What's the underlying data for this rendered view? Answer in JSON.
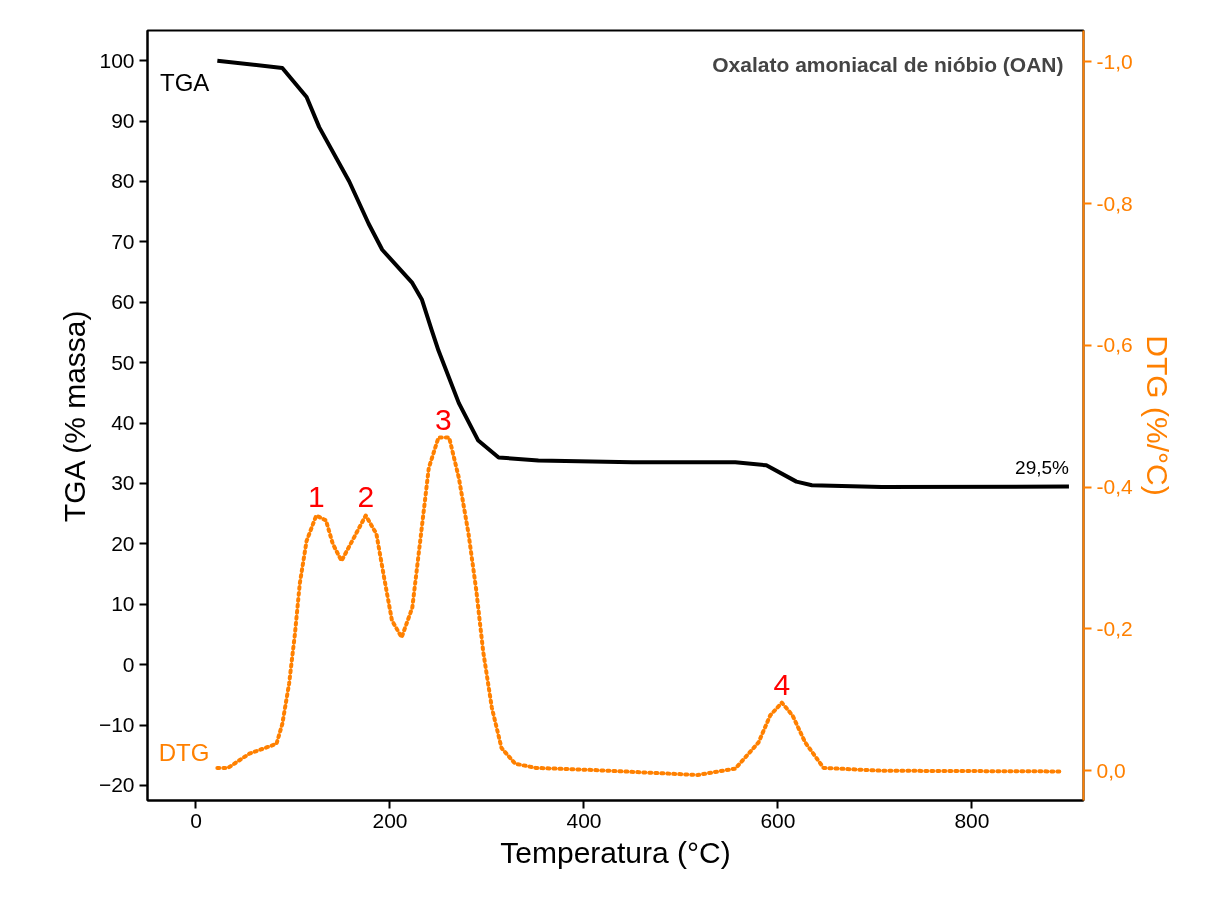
{
  "chart_data": {
    "type": "line",
    "title": "Oxalato amoniacal de nióbio (OAN)",
    "xlabel": "Temperatura (°C)",
    "ylabel": "TGA (% massa)",
    "y2label": "DTG (%/°C)",
    "xlim": [
      -50,
      915
    ],
    "xticks": [
      0,
      200,
      400,
      600,
      800
    ],
    "ylim": [
      -22.5,
      105
    ],
    "yticks": [
      -20,
      -10,
      0,
      10,
      20,
      30,
      40,
      50,
      60,
      70,
      80,
      90,
      100
    ],
    "y2lim": [
      0.042,
      -1.044
    ],
    "y2ticks": [
      {
        "value": 0,
        "label": "0,0"
      },
      {
        "value": -0.2,
        "label": "-0,2"
      },
      {
        "value": -0.4,
        "label": "-0,4"
      },
      {
        "value": -0.6,
        "label": "-0,6"
      },
      {
        "value": -0.8,
        "label": "-0,8"
      },
      {
        "value": -1.0,
        "label": "-1,0"
      }
    ],
    "grid": false,
    "series": [
      {
        "name": "TGA",
        "color": "#000000",
        "line_style": "solid",
        "x": [
          22,
          89,
          114,
          127,
          158,
          178,
          192,
          223,
          233,
          243,
          250,
          271,
          291,
          312,
          353,
          450,
          556,
          588,
          619,
          635,
          707,
          900
        ],
        "values": [
          100,
          98.8,
          94,
          89,
          80,
          73,
          68.7,
          63.2,
          60.4,
          55.4,
          52,
          43.3,
          37.1,
          34.3,
          33.8,
          33.5,
          33.5,
          33,
          30.3,
          29.7,
          29.4,
          29.5
        ]
      },
      {
        "name": "DTG",
        "color": "#ff8000",
        "line_style": "dotted",
        "axis": "y2",
        "x": [
          22,
          33,
          55,
          83,
          89,
          96,
          102,
          107,
          114,
          124,
          134,
          141,
          150,
          161,
          175,
          186,
          194,
          202,
          212,
          223,
          232,
          240,
          250,
          261,
          271,
          281,
          289,
          296,
          305,
          315,
          329,
          350,
          410,
          517,
          556,
          580,
          592,
          604,
          615,
          628,
          647,
          707,
          891
        ],
        "values": [
          -0.004,
          -0.004,
          -0.024,
          -0.038,
          -0.066,
          -0.123,
          -0.193,
          -0.264,
          -0.324,
          -0.36,
          -0.353,
          -0.32,
          -0.296,
          -0.324,
          -0.36,
          -0.334,
          -0.272,
          -0.212,
          -0.188,
          -0.23,
          -0.334,
          -0.427,
          -0.47,
          -0.47,
          -0.413,
          -0.334,
          -0.254,
          -0.169,
          -0.089,
          -0.032,
          -0.01,
          -0.004,
          -0.001,
          0.006,
          -0.003,
          -0.04,
          -0.078,
          -0.096,
          -0.078,
          -0.04,
          -0.004,
          0,
          0.001
        ]
      }
    ],
    "annotations": [
      {
        "text": "1",
        "x": 124,
        "y": 24.7
      },
      {
        "text": "2",
        "x": 175,
        "y": 24.7
      },
      {
        "text": "3",
        "x": 255,
        "y": 37.6
      },
      {
        "text": "4",
        "x": 604,
        "y": -6.3
      },
      {
        "text": "29,5%",
        "x": 900,
        "y": 29.5
      }
    ]
  }
}
